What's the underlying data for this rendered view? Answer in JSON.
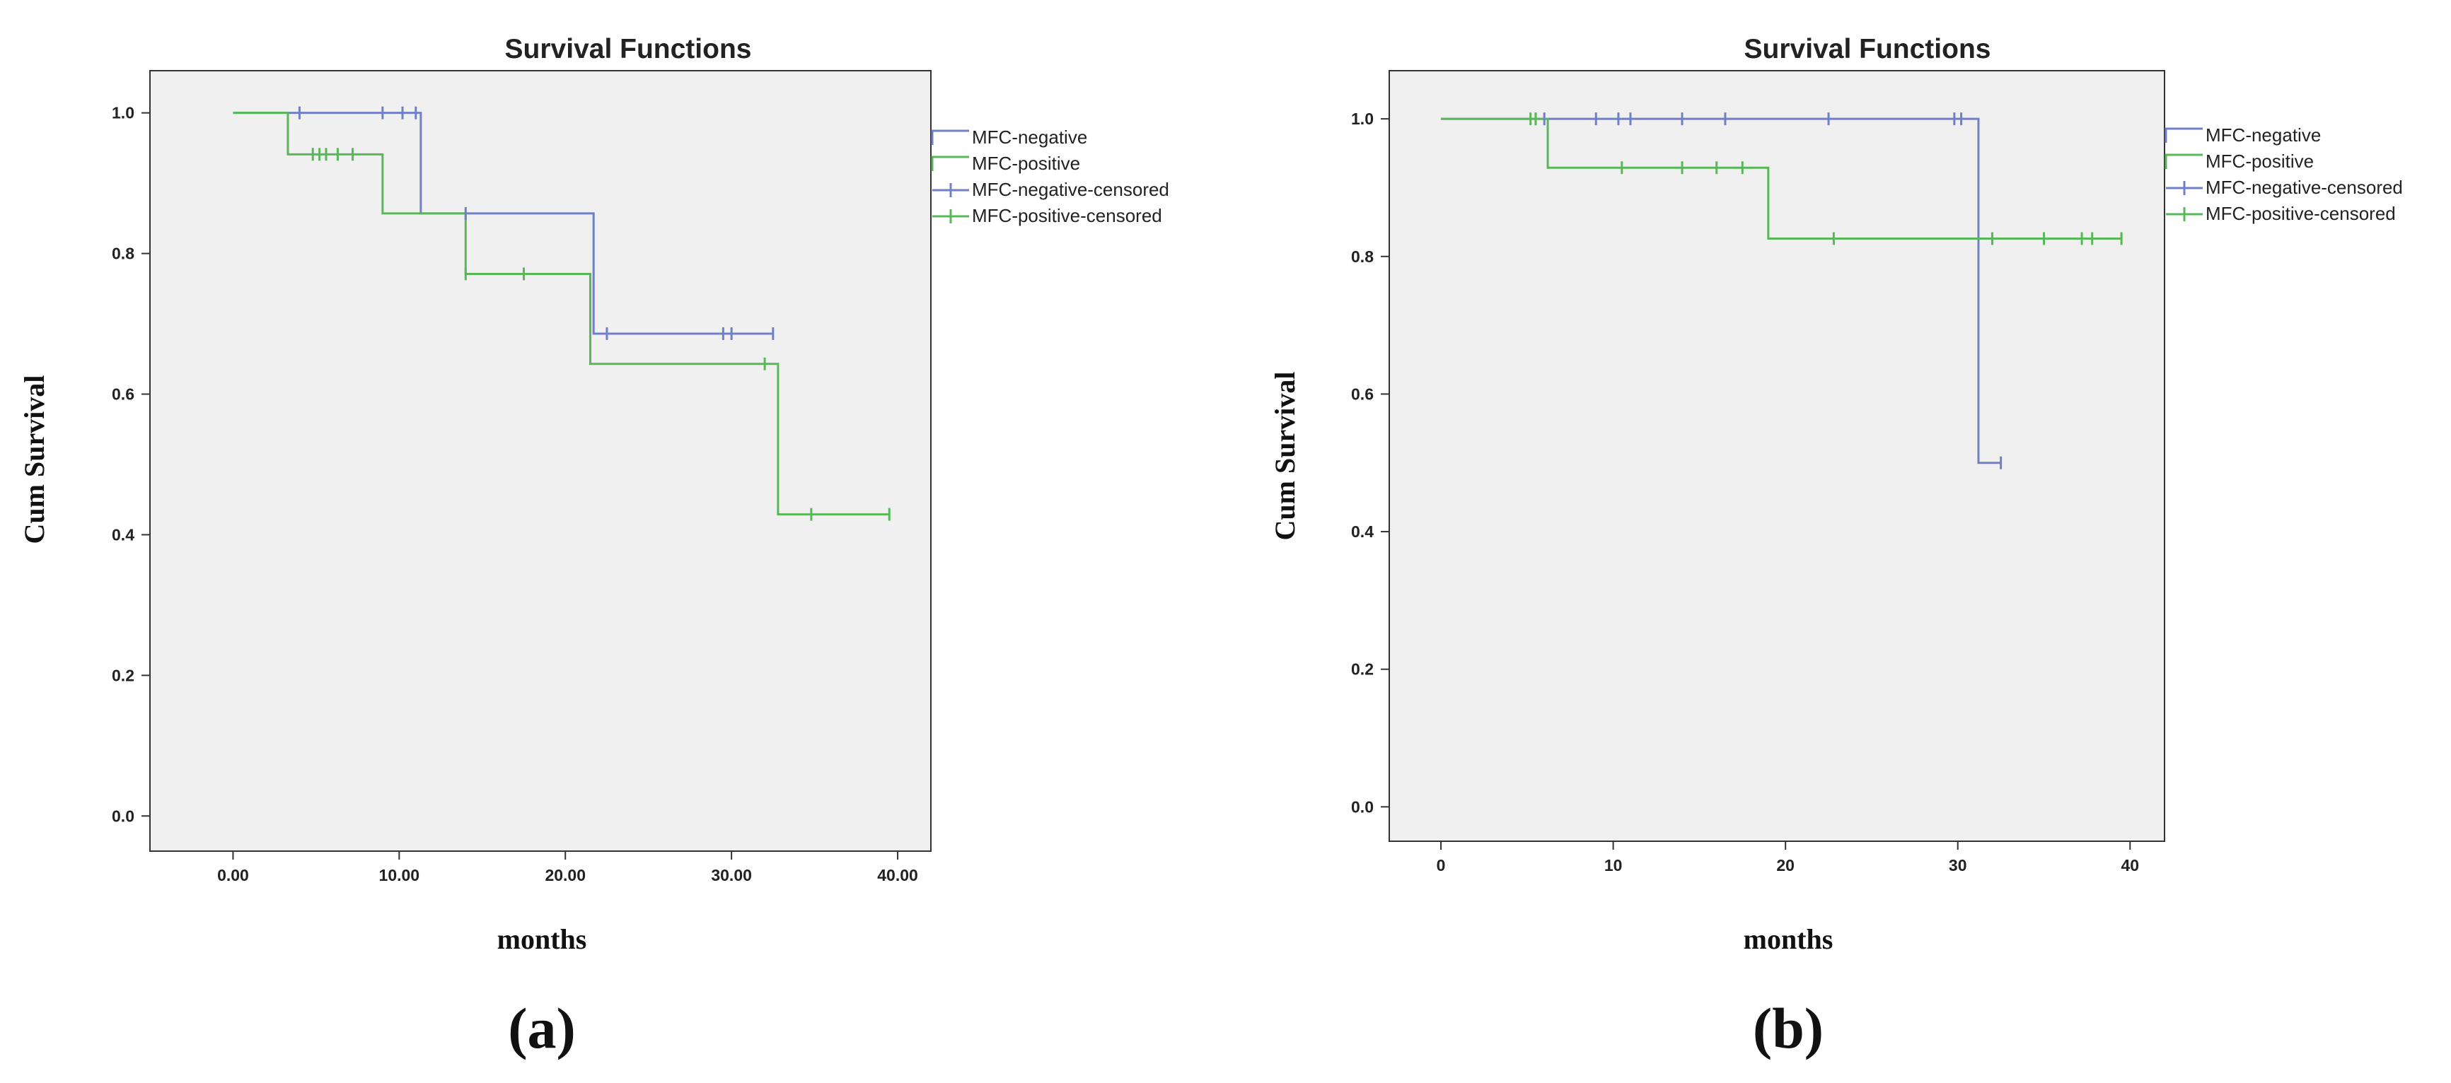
{
  "colors": {
    "negative": "#7080c8",
    "positive": "#58b858",
    "plot_bg": "#f0f0f0",
    "frame": "#333333"
  },
  "chart_data": [
    {
      "type": "line",
      "subtype": "kaplan-meier step",
      "panel_label": "(a)",
      "title": "Survival Functions",
      "xlabel": "months",
      "ylabel": "Cum Survival",
      "xlim": [
        -5,
        42
      ],
      "ylim": [
        -0.05,
        1.06
      ],
      "x_ticks": [
        0,
        10,
        20,
        30,
        40
      ],
      "x_tick_labels": [
        "0.00",
        "10.00",
        "20.00",
        "30.00",
        "40.00"
      ],
      "y_ticks": [
        0.0,
        0.2,
        0.4,
        0.6,
        0.8,
        1.0
      ],
      "y_tick_labels": [
        "0.0",
        "0.2",
        "0.4",
        "0.6",
        "0.8",
        "1.0"
      ],
      "grid": false,
      "legend_position": "right",
      "legend": [
        "MFC-negative",
        "MFC-positive",
        "MFC-negative-censored",
        "MFC-positive-censored"
      ],
      "series": [
        {
          "name": "MFC-negative",
          "color_key": "negative",
          "steps": [
            [
              0,
              1.0
            ],
            [
              11.3,
              0.857
            ],
            [
              21.7,
              0.686
            ],
            [
              32.5,
              0.686
            ]
          ],
          "censored": [
            [
              4.0,
              1.0
            ],
            [
              9.0,
              1.0
            ],
            [
              10.2,
              1.0
            ],
            [
              11.0,
              1.0
            ],
            [
              14.0,
              0.857
            ],
            [
              22.5,
              0.686
            ],
            [
              29.5,
              0.686
            ],
            [
              30.0,
              0.686
            ],
            [
              32.5,
              0.686
            ]
          ]
        },
        {
          "name": "MFC-positive",
          "color_key": "positive",
          "steps": [
            [
              0,
              1.0
            ],
            [
              3.3,
              0.941
            ],
            [
              9.0,
              0.857
            ],
            [
              14.0,
              0.771
            ],
            [
              21.5,
              0.643
            ],
            [
              32.8,
              0.429
            ],
            [
              39.5,
              0.429
            ]
          ],
          "censored": [
            [
              4.8,
              0.941
            ],
            [
              5.2,
              0.941
            ],
            [
              5.6,
              0.941
            ],
            [
              6.3,
              0.941
            ],
            [
              7.2,
              0.941
            ],
            [
              14.0,
              0.771
            ],
            [
              17.5,
              0.771
            ],
            [
              32.0,
              0.643
            ],
            [
              34.8,
              0.429
            ],
            [
              39.5,
              0.429
            ]
          ]
        }
      ]
    },
    {
      "type": "line",
      "subtype": "kaplan-meier step",
      "panel_label": "(b)",
      "title": "Survival Functions",
      "xlabel": "months",
      "ylabel": "Cum Survival",
      "xlim": [
        -3,
        42
      ],
      "ylim": [
        -0.05,
        1.07
      ],
      "x_ticks": [
        0,
        10,
        20,
        30,
        40
      ],
      "x_tick_labels": [
        "0",
        "10",
        "20",
        "30",
        "40"
      ],
      "y_ticks": [
        0.0,
        0.2,
        0.4,
        0.6,
        0.8,
        1.0
      ],
      "y_tick_labels": [
        "0.0",
        "0.2",
        "0.4",
        "0.6",
        "0.8",
        "1.0"
      ],
      "grid": false,
      "legend_position": "right",
      "legend": [
        "MFC-negative",
        "MFC-positive",
        "MFC-negative-censored",
        "MFC-positive-censored"
      ],
      "series": [
        {
          "name": "MFC-negative",
          "color_key": "negative",
          "steps": [
            [
              0,
              1.0
            ],
            [
              31.2,
              0.5
            ],
            [
              32.5,
              0.5
            ]
          ],
          "censored": [
            [
              5.5,
              1.0
            ],
            [
              6.0,
              1.0
            ],
            [
              9.0,
              1.0
            ],
            [
              10.3,
              1.0
            ],
            [
              11.0,
              1.0
            ],
            [
              14.0,
              1.0
            ],
            [
              16.5,
              1.0
            ],
            [
              22.5,
              1.0
            ],
            [
              29.8,
              1.0
            ],
            [
              30.2,
              1.0
            ],
            [
              32.5,
              0.5
            ]
          ]
        },
        {
          "name": "MFC-positive",
          "color_key": "positive",
          "steps": [
            [
              0,
              1.0
            ],
            [
              6.2,
              0.929
            ],
            [
              19.0,
              0.826
            ],
            [
              39.5,
              0.826
            ]
          ],
          "censored": [
            [
              5.2,
              1.0
            ],
            [
              5.5,
              1.0
            ],
            [
              10.5,
              0.929
            ],
            [
              14.0,
              0.929
            ],
            [
              16.0,
              0.929
            ],
            [
              17.5,
              0.929
            ],
            [
              22.8,
              0.826
            ],
            [
              32.0,
              0.826
            ],
            [
              35.0,
              0.826
            ],
            [
              37.2,
              0.826
            ],
            [
              37.8,
              0.826
            ],
            [
              39.5,
              0.826
            ]
          ]
        }
      ]
    }
  ]
}
